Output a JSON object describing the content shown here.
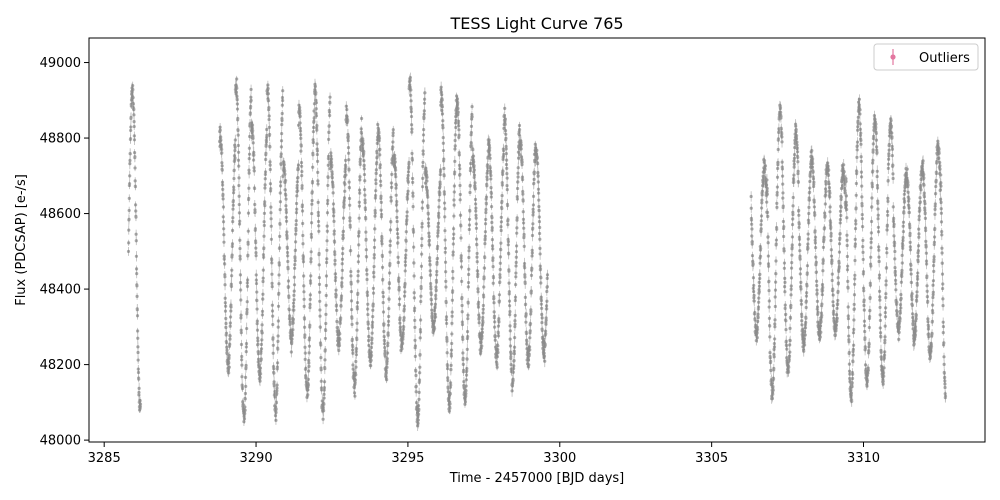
{
  "chart_data": {
    "type": "scatter",
    "title": "TESS Light Curve 765",
    "xlabel": "Time - 2457000 [BJD days]",
    "ylabel": "Flux (PDCSAP) [e-/s]",
    "xlim": [
      3284.5,
      3314.0
    ],
    "ylim": [
      47995,
      49065
    ],
    "xticks": [
      3285,
      3290,
      3295,
      3300,
      3305,
      3310
    ],
    "yticks": [
      48000,
      48200,
      48400,
      48600,
      48800,
      49000
    ],
    "grid": false,
    "legend": {
      "position": "top-right",
      "entries": [
        "Outliers"
      ]
    },
    "colors": {
      "data": "#666666",
      "outlier": "#e377a0"
    },
    "segments": [
      {
        "start": 3285.8,
        "end": 3286.2
      },
      {
        "start": 3288.8,
        "end": 3299.6
      },
      {
        "start": 3306.3,
        "end": 3312.7
      }
    ],
    "signal": {
      "mean": 48500,
      "amplitude_min": 200,
      "amplitude_max": 450,
      "period_days": 0.52,
      "noise": 25
    }
  }
}
